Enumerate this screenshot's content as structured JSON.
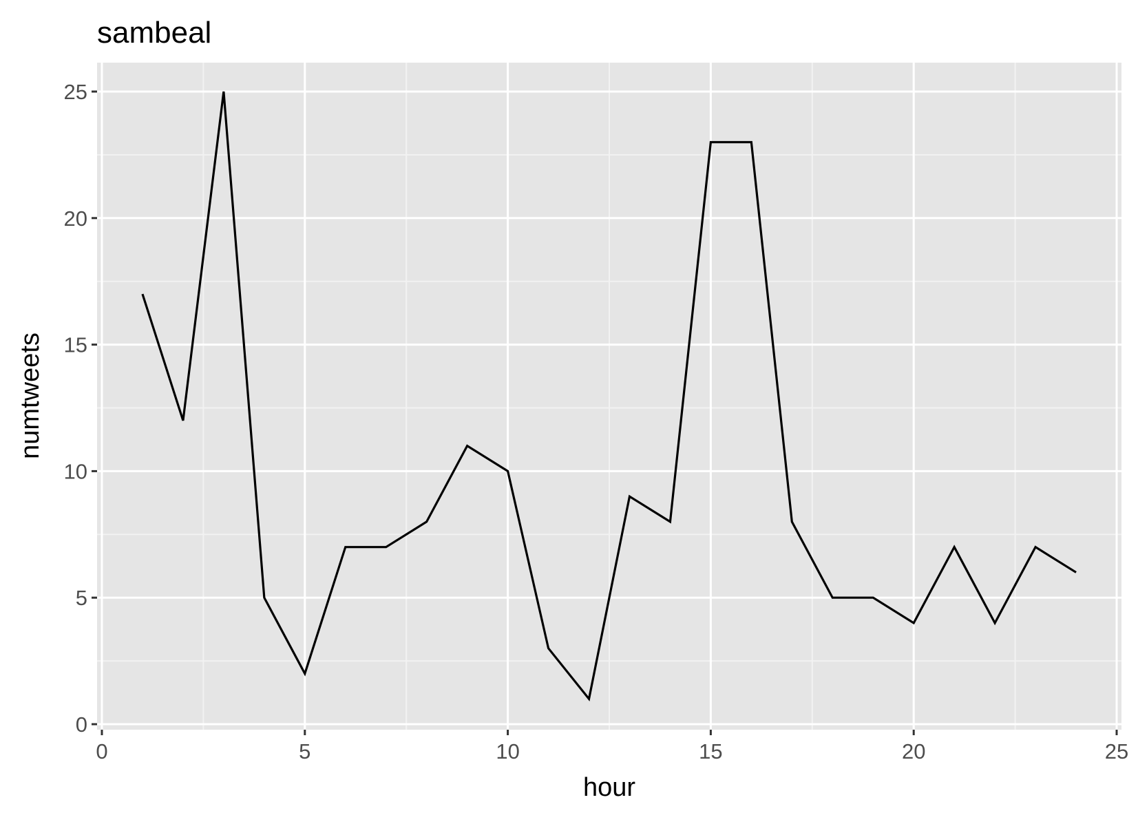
{
  "chart_data": {
    "type": "line",
    "title": "sambeal",
    "xlabel": "hour",
    "ylabel": "numtweets",
    "xlim": [
      0,
      25
    ],
    "ylim": [
      0,
      25
    ],
    "x_ticks": [
      0,
      5,
      10,
      15,
      20,
      25
    ],
    "y_ticks": [
      0,
      5,
      10,
      15,
      20,
      25
    ],
    "x_tick_labels": [
      "0",
      "5",
      "10",
      "15",
      "20",
      "25"
    ],
    "y_tick_labels": [
      "0",
      "5",
      "10",
      "15",
      "20",
      "25"
    ],
    "grid": true,
    "legend": "none",
    "series": [
      {
        "x": [
          1,
          2,
          3,
          4,
          5,
          6,
          7,
          8,
          9,
          10,
          11,
          12,
          13,
          14,
          15,
          16,
          17,
          18,
          19,
          20,
          21,
          22,
          23,
          24
        ],
        "values": [
          17,
          12,
          25,
          5,
          2,
          7,
          7,
          8,
          11,
          10,
          3,
          1,
          9,
          8,
          23,
          23,
          8,
          5,
          5,
          4,
          7,
          4,
          7,
          6
        ]
      }
    ]
  },
  "colors": {
    "panel_background": "#e5e5e5",
    "grid_major": "#ffffff",
    "grid_minor": "#f2f2f2",
    "line": "#000000",
    "tick_mark": "#333333",
    "tick_text": "#4d4d4d"
  }
}
